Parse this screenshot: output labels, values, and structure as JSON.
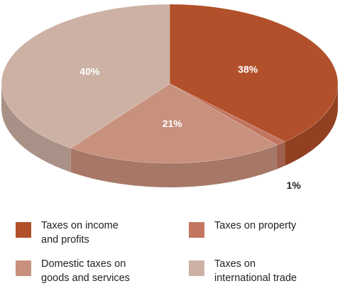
{
  "chart_data": {
    "type": "pie",
    "title": "",
    "slices": [
      {
        "label": "Taxes on income\nand profits",
        "value": 38,
        "value_label": "38%",
        "color": "#b1502a",
        "side_color": "#914122"
      },
      {
        "label": "Taxes on property",
        "value": 1,
        "value_label": "1%",
        "color": "#c27660",
        "side_color": "#a05f4c"
      },
      {
        "label": "Domestic taxes on\ngoods and services",
        "value": 21,
        "value_label": "21%",
        "color": "#c8917e",
        "side_color": "#a77867"
      },
      {
        "label": "Taxes on\ninternational trade",
        "value": 40,
        "value_label": "40%",
        "color": "#cdb1a5",
        "side_color": "#a99187"
      }
    ],
    "legend_position": "bottom"
  }
}
